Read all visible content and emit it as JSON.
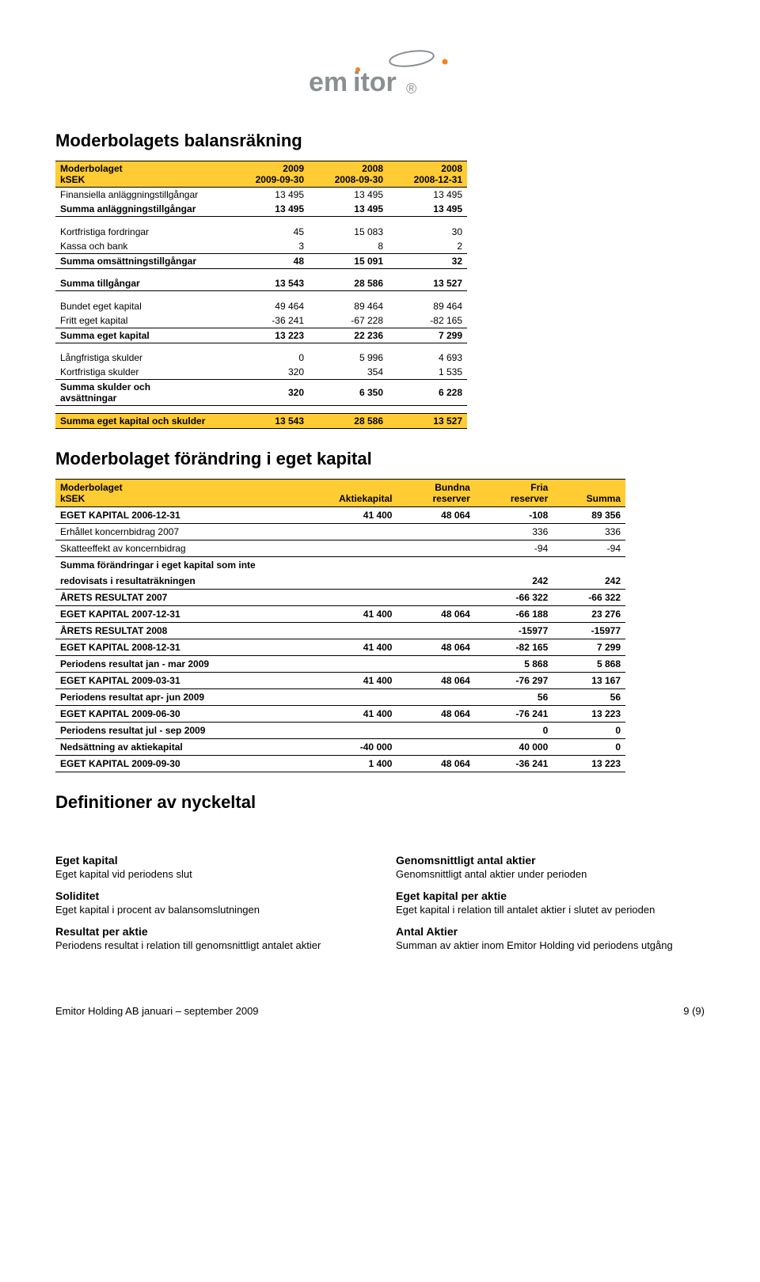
{
  "colors": {
    "header_bg": "#ffcc33",
    "border": "#000000",
    "text": "#000000",
    "logo_gray": "#8a8f92",
    "logo_orange": "#f58220"
  },
  "logo": {
    "text": "emitor"
  },
  "section1_title": "Moderbolagets balansräkning",
  "table1": {
    "header": {
      "c0a": "Moderbolaget",
      "c0b": "kSEK",
      "c1a": "2009",
      "c1b": "2009-09-30",
      "c2a": "2008",
      "c2b": "2008-09-30",
      "c3a": "2008",
      "c3b": "2008-12-31"
    },
    "rows": [
      {
        "label": "Finansiella anläggningstillgångar",
        "v": [
          "13 495",
          "13 495",
          "13 495"
        ]
      },
      {
        "label": "Summa anläggningstillgångar",
        "v": [
          "13 495",
          "13 495",
          "13 495"
        ],
        "bold": true,
        "ul": true
      },
      null,
      {
        "label": "Kortfristiga fordringar",
        "v": [
          "45",
          "15 083",
          "30"
        ]
      },
      {
        "label": "Kassa och bank",
        "v": [
          "3",
          "8",
          "2"
        ]
      },
      {
        "label": "Summa omsättningstillgångar",
        "v": [
          "48",
          "15 091",
          "32"
        ],
        "bold": true,
        "ul": true,
        "top": true
      },
      null,
      {
        "label": "Summa tillgångar",
        "v": [
          "13 543",
          "28 586",
          "13 527"
        ],
        "bold": true,
        "ul": true
      },
      null,
      {
        "label": "Bundet eget kapital",
        "v": [
          "49 464",
          "89 464",
          "89 464"
        ]
      },
      {
        "label": "Fritt eget kapital",
        "v": [
          "-36 241",
          "-67 228",
          "-82 165"
        ]
      },
      {
        "label": "Summa eget kapital",
        "v": [
          "13 223",
          "22 236",
          "7 299"
        ],
        "bold": true,
        "ul": true,
        "top": true
      },
      null,
      {
        "label": "Långfristiga skulder",
        "v": [
          "0",
          "5 996",
          "4 693"
        ]
      },
      {
        "label": "Kortfristiga skulder",
        "v": [
          "320",
          "354",
          "1 535"
        ]
      },
      {
        "label": "Summa skulder och avsättningar",
        "v": [
          "320",
          "6 350",
          "6 228"
        ],
        "bold": true,
        "ul": true,
        "top": true,
        "wrap": true
      },
      null,
      {
        "label": "Summa eget kapital och skulder",
        "v": [
          "13 543",
          "28 586",
          "13 527"
        ],
        "yellow": true
      }
    ]
  },
  "section2_title": "Moderbolaget förändring i eget kapital",
  "table2": {
    "header": {
      "c0a": "Moderbolaget",
      "c0b": "kSEK",
      "c1": "Aktiekapital",
      "c2a": "Bundna",
      "c2b": "reserver",
      "c3a": "Fria",
      "c3b": "reserver",
      "c4": "Summa"
    },
    "rows": [
      {
        "label": "EGET KAPITAL 2006-12-31",
        "v": [
          "41 400",
          "48 064",
          "-108",
          "89 356"
        ],
        "bold": true,
        "ul": true
      },
      {
        "label": "Erhållet koncernbidrag 2007",
        "v": [
          "",
          "",
          "336",
          "336"
        ],
        "ul": true
      },
      {
        "label": "Skatteeffekt av koncernbidrag",
        "v": [
          "",
          "",
          "-94",
          "-94"
        ],
        "ul": true
      },
      {
        "label": "Summa förändringar i eget kapital som inte",
        "v": [
          "",
          "",
          "",
          ""
        ],
        "bold": true
      },
      {
        "label": "redovisats i resultaträkningen",
        "v": [
          "",
          "",
          "242",
          "242"
        ],
        "bold": true,
        "ul": true
      },
      {
        "label": "ÅRETS RESULTAT 2007",
        "v": [
          "",
          "",
          "-66 322",
          "-66 322"
        ],
        "bold": true,
        "ul": true
      },
      {
        "label": "EGET KAPITAL 2007-12-31",
        "v": [
          "41 400",
          "48 064",
          "-66 188",
          "23 276"
        ],
        "bold": true,
        "ul": true
      },
      {
        "label": "ÅRETS RESULTAT 2008",
        "v": [
          "",
          "",
          "-15977",
          "-15977"
        ],
        "bold": true,
        "ul": true
      },
      {
        "label": "EGET KAPITAL 2008-12-31",
        "v": [
          "41 400",
          "48 064",
          "-82 165",
          "7 299"
        ],
        "bold": true,
        "ul": true
      },
      {
        "label": "Periodens resultat jan - mar 2009",
        "v": [
          "",
          "",
          "5 868",
          "5 868"
        ],
        "bold": true,
        "ul": true
      },
      {
        "label": "EGET KAPITAL 2009-03-31",
        "v": [
          "41 400",
          "48 064",
          "-76 297",
          "13 167"
        ],
        "bold": true,
        "ul": true
      },
      {
        "label": "Periodens resultat apr- jun 2009",
        "v": [
          "",
          "",
          "56",
          "56"
        ],
        "bold": true,
        "ul": true
      },
      {
        "label": "EGET KAPITAL 2009-06-30",
        "v": [
          "41 400",
          "48 064",
          "-76 241",
          "13 223"
        ],
        "bold": true,
        "ul": true
      },
      {
        "label": "Periodens resultat jul - sep 2009",
        "v": [
          "",
          "",
          "0",
          "0"
        ],
        "bold": true,
        "ul": true
      },
      {
        "label": "Nedsättning av aktiekapital",
        "v": [
          "-40 000",
          "",
          "40 000",
          "0"
        ],
        "bold": true,
        "ul": true
      },
      {
        "label": "EGET KAPITAL 2009-09-30",
        "v": [
          "1 400",
          "48 064",
          "-36 241",
          "13 223"
        ],
        "bold": true,
        "ul": true
      }
    ]
  },
  "defs_title": "Definitioner av nyckeltal",
  "defs": {
    "left": [
      {
        "h": "Eget kapital",
        "p": "Eget kapital vid periodens slut"
      },
      {
        "h": "Soliditet",
        "p": "Eget kapital i procent av balansomslutningen"
      },
      {
        "h": "Resultat per aktie",
        "p": "Periodens resultat i relation till genomsnittligt antalet aktier"
      }
    ],
    "right": [
      {
        "h": "Genomsnittligt antal aktier",
        "p": "Genomsnittligt antal aktier under perioden"
      },
      {
        "h": "Eget kapital per aktie",
        "p": "Eget kapital i relation till antalet aktier i slutet av perioden"
      },
      {
        "h": "Antal Aktier",
        "p": "Summan av aktier inom Emitor Holding vid periodens utgång"
      }
    ]
  },
  "footer": {
    "left": "Emitor Holding AB januari – september 2009",
    "right": "9 (9)"
  }
}
